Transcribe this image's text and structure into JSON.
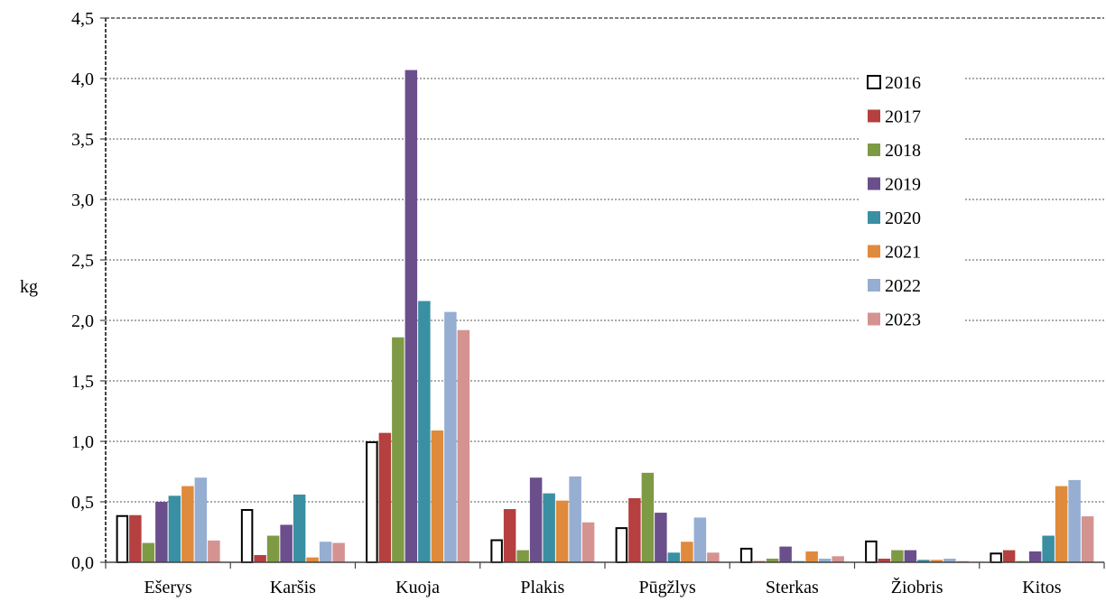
{
  "chart_data": {
    "type": "bar",
    "ylabel": "kg",
    "xlabel": "",
    "ylim": [
      0,
      4.5
    ],
    "yticks": [
      "0,0",
      "0,5",
      "1,0",
      "1,5",
      "2,0",
      "2,5",
      "3,0",
      "3,5",
      "4,0",
      "4,5"
    ],
    "grid": true,
    "legend_position": "top-right",
    "categories": [
      "Ešerys",
      "Karšis",
      "Kuoja",
      "Plakis",
      "Pūgžlys",
      "Sterkas",
      "Žiobris",
      "Kitos"
    ],
    "series": [
      {
        "name": "2016",
        "color": "#ffffff",
        "stroke": "#000000",
        "values": [
          0.39,
          0.44,
          1.0,
          0.19,
          0.29,
          0.12,
          0.18,
          0.08
        ]
      },
      {
        "name": "2017",
        "color": "#b5403f",
        "values": [
          0.39,
          0.06,
          1.07,
          0.44,
          0.53,
          0.01,
          0.03,
          0.1
        ]
      },
      {
        "name": "2018",
        "color": "#7f9a44",
        "values": [
          0.16,
          0.22,
          1.86,
          0.1,
          0.74,
          0.03,
          0.1,
          0.01
        ]
      },
      {
        "name": "2019",
        "color": "#6b4f8c",
        "values": [
          0.5,
          0.31,
          4.07,
          0.7,
          0.41,
          0.13,
          0.1,
          0.09
        ]
      },
      {
        "name": "2020",
        "color": "#3a8fa3",
        "values": [
          0.55,
          0.56,
          2.16,
          0.57,
          0.08,
          0.01,
          0.02,
          0.22
        ]
      },
      {
        "name": "2021",
        "color": "#e08a3c",
        "values": [
          0.63,
          0.04,
          1.09,
          0.51,
          0.17,
          0.09,
          0.02,
          0.63
        ]
      },
      {
        "name": "2022",
        "color": "#95aed1",
        "values": [
          0.7,
          0.17,
          2.07,
          0.71,
          0.37,
          0.03,
          0.03,
          0.68
        ]
      },
      {
        "name": "2023",
        "color": "#d49391",
        "values": [
          0.18,
          0.16,
          1.92,
          0.33,
          0.08,
          0.05,
          0.01,
          0.38
        ]
      }
    ]
  }
}
